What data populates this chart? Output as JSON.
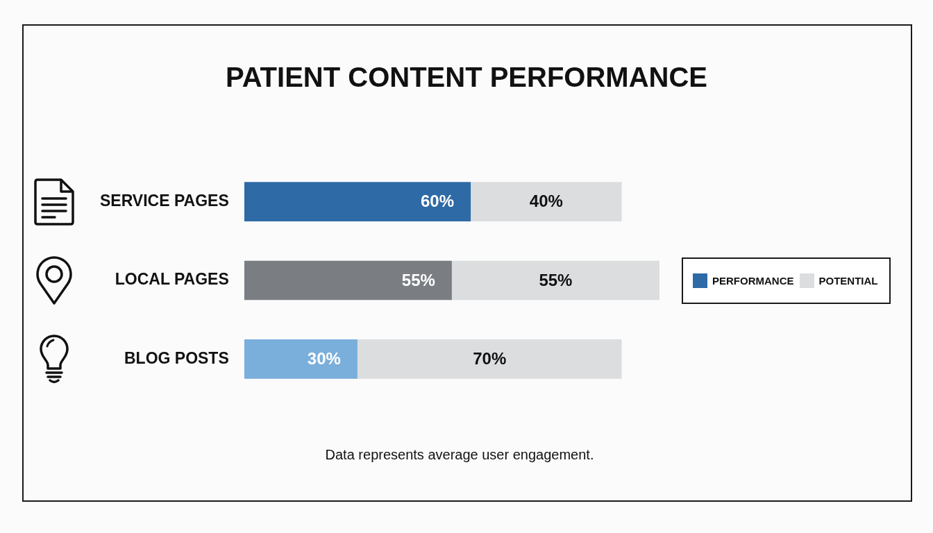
{
  "chart_data": {
    "type": "bar",
    "orientation": "horizontal",
    "stacked": true,
    "title": "PATIENT CONTENT PERFORMANCE",
    "categories": [
      "SERVICE PAGES",
      "LOCAL PAGES",
      "BLOG POSTS"
    ],
    "series": [
      {
        "name": "PERFORMANCE",
        "color": "#2e6aa5",
        "colors": [
          "#2e6aa5",
          "#7a7e83",
          "#7aaedb"
        ],
        "values": [
          60,
          55,
          30
        ],
        "value_labels": [
          "60%",
          "55%",
          "30%"
        ]
      },
      {
        "name": "POTENTIAL",
        "color": "#dcdddf",
        "values": [
          40,
          55,
          70
        ],
        "value_labels": [
          "40%",
          "55%",
          "70%"
        ]
      }
    ],
    "legend": "right",
    "tick_labels": "y",
    "annotations": [
      "Data represents average user engagement."
    ]
  }
}
